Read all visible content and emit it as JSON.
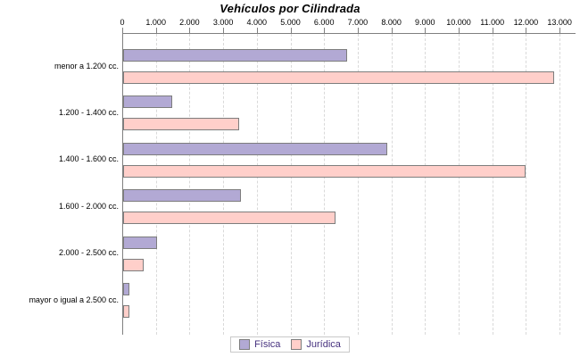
{
  "title": "Vehículos por Cilindrada",
  "legend": {
    "position": "bottom",
    "items": [
      {
        "label": "Física",
        "color": "#b2a9d4"
      },
      {
        "label": "Jurídica",
        "color": "#ffcfca"
      }
    ]
  },
  "chart_data": {
    "type": "bar",
    "orientation": "horizontal",
    "title": "Vehículos por Cilindrada",
    "categories": [
      "menor a 1.200 cc.",
      "1.200 - 1.400 cc.",
      "1.400 - 1.600 cc.",
      "1.600 - 2.000 cc.",
      "2.000 - 2.500 cc.",
      "mayor o igual a 2.500 cc."
    ],
    "series": [
      {
        "name": "Física",
        "color": "#b2a9d4",
        "values": [
          6600,
          1400,
          7800,
          3450,
          950,
          130
        ]
      },
      {
        "name": "Jurídica",
        "color": "#ffcfca",
        "values": [
          12750,
          3400,
          11900,
          6250,
          570,
          130
        ]
      }
    ],
    "xlim": [
      0,
      13000
    ],
    "x_ticks": [
      0,
      1000,
      2000,
      3000,
      4000,
      5000,
      6000,
      7000,
      8000,
      9000,
      10000,
      11000,
      12000,
      13000
    ],
    "x_tick_labels": [
      "0",
      "1.000",
      "2.000",
      "3.000",
      "4.000",
      "5.000",
      "6.000",
      "7.000",
      "8.000",
      "9.000",
      "10.000",
      "11.000",
      "12.000",
      "13.000"
    ],
    "grid": "vertical-dashed",
    "legend_position": "bottom"
  }
}
